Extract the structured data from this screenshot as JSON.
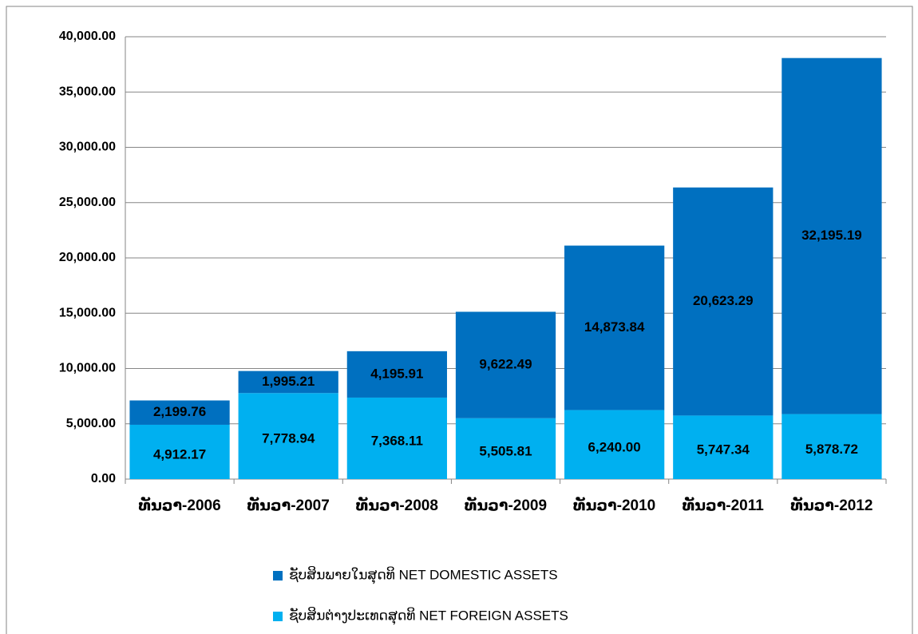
{
  "chart_data": {
    "type": "stacked_bar",
    "categories": [
      "ທັນວາ-2006",
      "ທັນວາ-2007",
      "ທັນວາ-2008",
      "ທັນວາ-2009",
      "ທັນວາ-2010",
      "ທັນວາ-2011",
      "ທັນວາ-2012"
    ],
    "series": [
      {
        "name": "ຊັບສິນພາຍໃນສຸດທິ NET DOMESTIC ASSETS",
        "color": "#0070c0",
        "values": [
          2199.76,
          1995.21,
          4195.91,
          9622.49,
          14873.84,
          20623.29,
          32195.19
        ],
        "value_labels": [
          "2,199.76",
          "1,995.21",
          "4,195.91",
          "9,622.49",
          "14,873.84",
          "20,623.29",
          "32,195.19"
        ]
      },
      {
        "name": "ຊັບສິນຕ່າງປະເທດສຸດທິ NET FOREIGN ASSETS",
        "color": "#00b0f0",
        "values": [
          4912.17,
          7778.94,
          7368.11,
          5505.81,
          6240.0,
          5747.34,
          5878.72
        ],
        "value_labels": [
          "4,912.17",
          "7,778.94",
          "7,368.11",
          "5,505.81",
          "6,240.00",
          "5,747.34",
          "5,878.72"
        ]
      }
    ],
    "ylim": [
      0,
      40000
    ],
    "yticks": [
      {
        "value": 0,
        "label": "0.00"
      },
      {
        "value": 5000,
        "label": "5,000.00"
      },
      {
        "value": 10000,
        "label": "10,000.00"
      },
      {
        "value": 15000,
        "label": "15,000.00"
      },
      {
        "value": 20000,
        "label": "20,000.00"
      },
      {
        "value": 25000,
        "label": "25,000.00"
      },
      {
        "value": 30000,
        "label": "30,000.00"
      },
      {
        "value": 35000,
        "label": "35,000.00"
      },
      {
        "value": 40000,
        "label": "40,000.00"
      }
    ],
    "grid": true,
    "legend": "bottom"
  }
}
